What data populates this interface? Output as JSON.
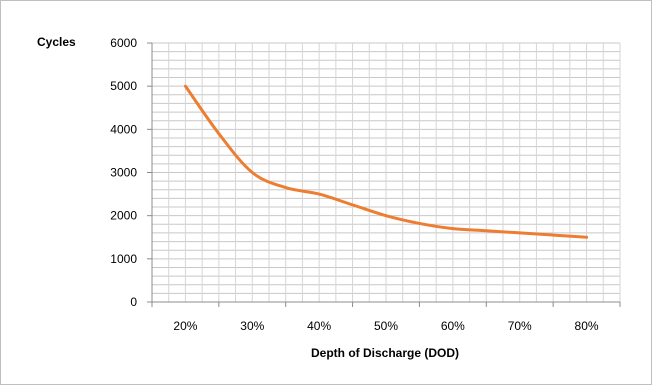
{
  "chart_data": {
    "type": "line",
    "title": "",
    "xlabel": "Depth of Discharge (DOD)",
    "ylabel": "Cycles",
    "categories": [
      "20%",
      "30%",
      "40%",
      "50%",
      "60%",
      "70%",
      "80%"
    ],
    "x": [
      20,
      25,
      30,
      35,
      40,
      45,
      50,
      55,
      60,
      65,
      70,
      75,
      80
    ],
    "series": [
      {
        "values": [
          5000,
          3900,
          3000,
          2650,
          2500,
          2250,
          2000,
          1820,
          1700,
          1650,
          1600,
          1550,
          1500
        ]
      }
    ],
    "xlim": [
      15,
      85
    ],
    "ylim": [
      0,
      6000
    ],
    "y_ticks": [
      0,
      1000,
      2000,
      3000,
      4000,
      5000,
      6000
    ],
    "line_color": "#ED7D31",
    "grid": true,
    "legend": "none"
  }
}
